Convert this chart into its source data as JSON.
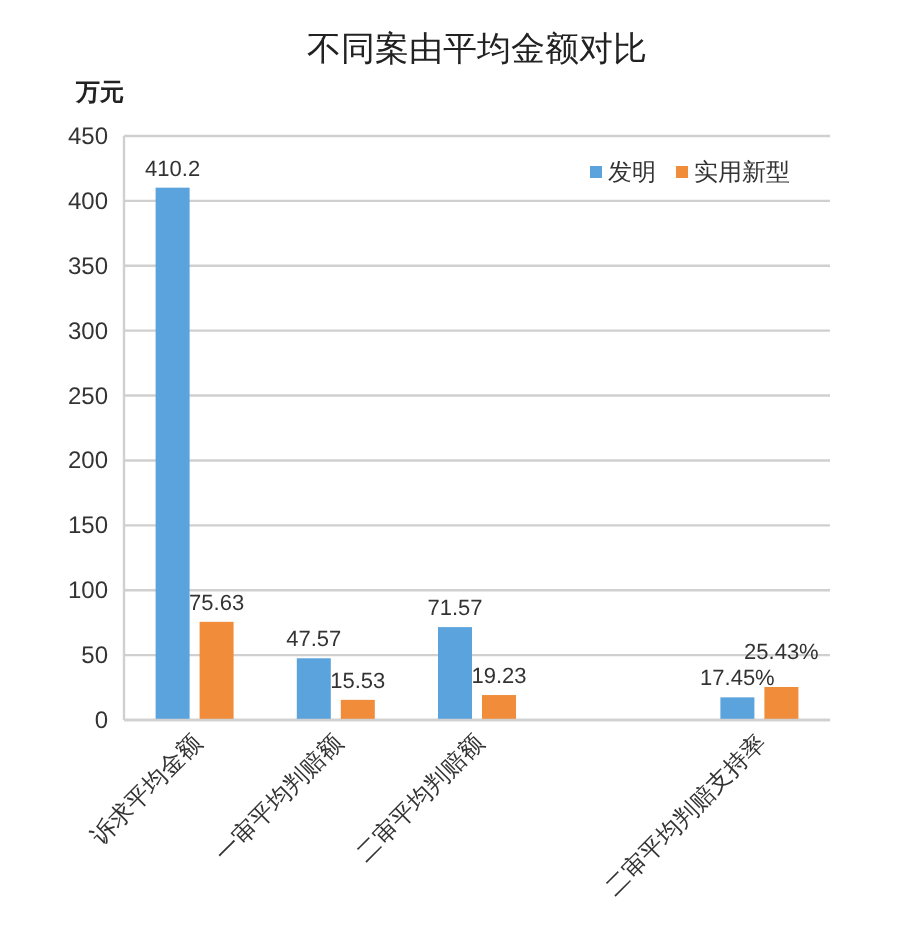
{
  "chart_data": {
    "type": "bar",
    "title": "不同案由平均金额对比",
    "ylabel": "万元",
    "categories": [
      "诉求平均金额",
      "一审平均判赔额",
      "二审平均判赔额",
      null,
      "二审平均判赔支持率"
    ],
    "series": [
      {
        "name": "发明",
        "color": "#5ba3dc",
        "values": [
          410.2,
          47.57,
          71.57,
          null,
          17.45
        ],
        "value_labels": [
          "410.2",
          "47.57",
          "71.57",
          null,
          "17.45%"
        ]
      },
      {
        "name": "实用新型",
        "color": "#f08c3a",
        "values": [
          75.63,
          15.53,
          19.23,
          null,
          25.43
        ],
        "value_labels": [
          "75.63",
          "15.53",
          "19.23",
          null,
          "25.43%"
        ]
      }
    ],
    "ylim": [
      0,
      450
    ],
    "yticks": [
      0,
      50,
      100,
      150,
      200,
      250,
      300,
      350,
      400,
      450
    ],
    "grid": "y",
    "legend": "top right"
  }
}
